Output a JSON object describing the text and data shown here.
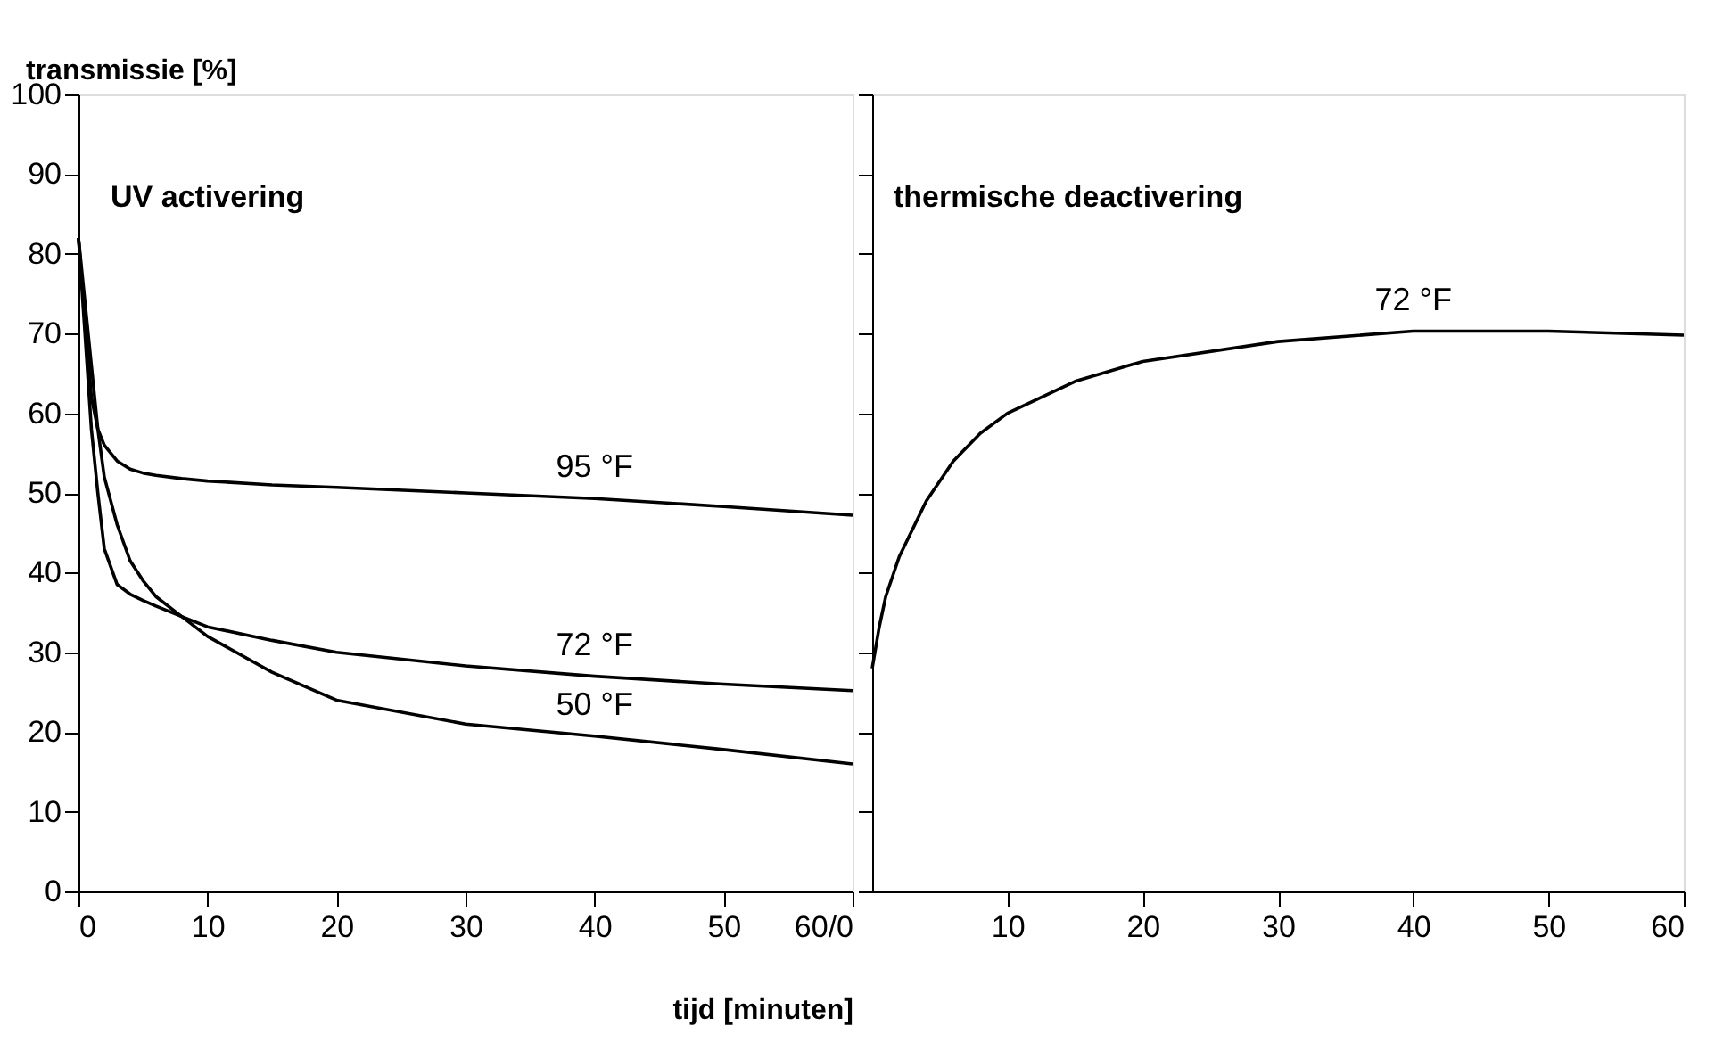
{
  "chart_data": [
    {
      "type": "line",
      "ylabel": "transmissie [%]",
      "xlabel": "tijd [minuten]",
      "xlim": [
        0,
        60
      ],
      "ylim": [
        0,
        100
      ],
      "xticks": [
        0,
        10,
        20,
        30,
        40,
        50,
        {
          "value": 60,
          "label": "60/0"
        }
      ],
      "yticks": [
        0,
        10,
        20,
        30,
        40,
        50,
        60,
        70,
        80,
        90,
        100
      ],
      "grid": false,
      "legend": false,
      "x": [
        0,
        0.5,
        1,
        1.5,
        2,
        3,
        4,
        5,
        6,
        8,
        10,
        15,
        20,
        30,
        40,
        50,
        60
      ],
      "series": [
        {
          "name": "95 °F",
          "color": "#000000",
          "values": [
            82,
            72,
            62,
            58,
            56,
            54,
            53,
            52.5,
            52.2,
            51.8,
            51.5,
            51,
            50.7,
            50,
            49.3,
            48.3,
            47.2
          ]
        },
        {
          "name": "72 °F",
          "color": "#000000",
          "values": [
            82,
            70,
            58,
            50,
            43,
            38.5,
            37.3,
            36.5,
            35.8,
            34.5,
            33.2,
            31.5,
            30,
            28.3,
            27,
            26,
            25.2
          ]
        },
        {
          "name": "50 °F",
          "color": "#000000",
          "values": [
            82,
            74,
            66,
            58,
            52,
            46,
            41.5,
            39,
            37,
            34.5,
            32,
            27.5,
            24,
            21,
            19.5,
            17.8,
            16
          ]
        }
      ],
      "annotations": [
        "UV activering"
      ]
    },
    {
      "type": "line",
      "xlim": [
        0,
        60
      ],
      "ylim": [
        0,
        100
      ],
      "xticks": [
        10,
        20,
        30,
        40,
        50,
        60
      ],
      "yticks": [
        0,
        10,
        20,
        30,
        40,
        50,
        60,
        70,
        80,
        90,
        100
      ],
      "tick_labels": "x",
      "grid": false,
      "legend": false,
      "x": [
        0,
        0.5,
        1,
        2,
        4,
        6,
        8,
        10,
        15,
        20,
        30,
        40,
        50,
        60
      ],
      "series": [
        {
          "name": "72 °F",
          "color": "#000000",
          "values": [
            28,
            33,
            37,
            42,
            49,
            54,
            57.5,
            60,
            64,
            66.5,
            69,
            70.3,
            70.3,
            69.8
          ]
        }
      ],
      "annotations": [
        "thermische deactivering"
      ]
    }
  ]
}
